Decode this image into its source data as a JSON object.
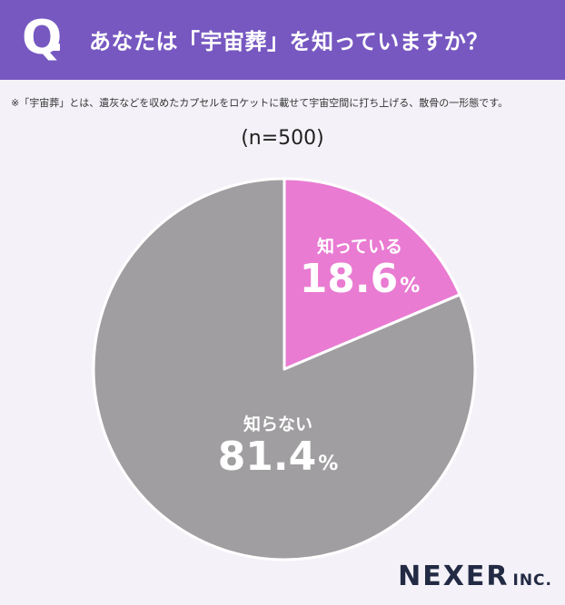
{
  "header": {
    "q_mark": "Q",
    "question": "あなたは「宇宙葬」を知っていますか？"
  },
  "note": "※「宇宙葬」とは、遺灰などを収めたカプセルをロケットに載せて宇宙空間に打ち上げる、散骨の一形態です。",
  "sample_label": "(n=500)",
  "chart_data": {
    "type": "pie",
    "categories": [
      "知っている",
      "知らない"
    ],
    "values": [
      18.6,
      81.4
    ],
    "value_labels": [
      "18.6",
      "81.4"
    ],
    "unit": "%",
    "colors": [
      "#e97bd2",
      "#a09ea0"
    ],
    "start": "12 o'clock",
    "direction": "clockwise"
  },
  "logo": {
    "main": "NEXER",
    "sub": "INC."
  }
}
